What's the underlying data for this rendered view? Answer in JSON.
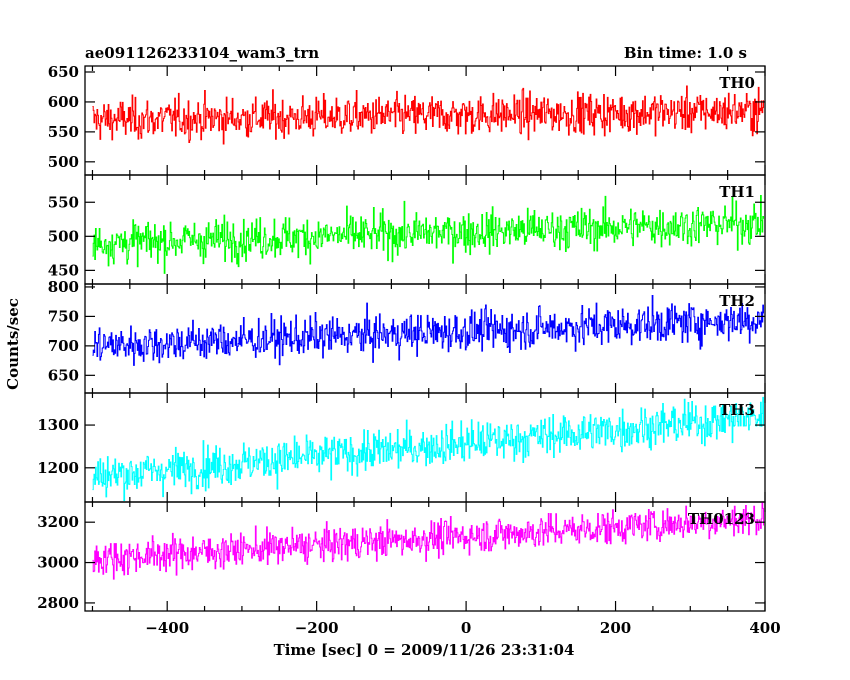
{
  "header": {
    "title_left": "ae091126233104_wam3_trn",
    "title_right": "Bin time: 1.0 s"
  },
  "chart_data": {
    "type": "line",
    "xlabel": "Time [sec] 0 = 2009/11/26 23:31:04",
    "ylabel": "Counts/sec",
    "xlim": [
      -510,
      400
    ],
    "x_ticks": [
      -400,
      -200,
      0,
      200,
      400
    ],
    "bin_time_s": 1.0,
    "grid": false,
    "series": [
      {
        "name": "TH0",
        "color": "#ff0000",
        "ylim": [
          478,
          660
        ],
        "y_ticks": [
          500,
          550,
          600,
          650
        ],
        "trend_start": 570,
        "trend_end": 585,
        "noise": 28
      },
      {
        "name": "TH1",
        "color": "#00ff00",
        "ylim": [
          430,
          590
        ],
        "y_ticks": [
          450,
          500,
          550
        ],
        "trend_start": 490,
        "trend_end": 520,
        "noise": 25
      },
      {
        "name": "TH2",
        "color": "#0000ff",
        "ylim": [
          620,
          805
        ],
        "y_ticks": [
          650,
          700,
          750,
          800
        ],
        "trend_start": 700,
        "trend_end": 745,
        "noise": 28
      },
      {
        "name": "TH3",
        "color": "#00ffff",
        "ylim": [
          1120,
          1375
        ],
        "y_ticks": [
          1200,
          1300
        ],
        "trend_start": 1180,
        "trend_end": 1320,
        "noise": 40
      },
      {
        "name": "TH0123",
        "color": "#ff00ff",
        "ylim": [
          2760,
          3300
        ],
        "y_ticks": [
          2800,
          3000,
          3200
        ],
        "trend_start": 3020,
        "trend_end": 3220,
        "noise": 70
      }
    ]
  }
}
